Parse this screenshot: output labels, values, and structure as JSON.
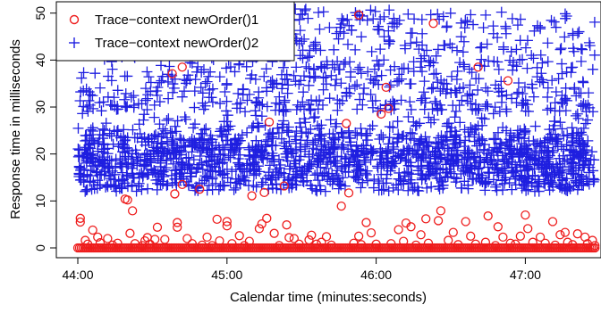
{
  "chart_data": {
    "type": "scatter",
    "xlabel": "Calendar time (minutes:seconds)",
    "ylabel": "Response time in milliseconds",
    "x_ticks": [
      "44:00",
      "45:00",
      "46:00",
      "47:00"
    ],
    "x_tick_seconds": [
      2640,
      2700,
      2760,
      2820
    ],
    "xlim": [
      "44:00",
      "47:30"
    ],
    "y_ticks": [
      0,
      10,
      20,
      30,
      40,
      50
    ],
    "ylim": [
      -1,
      51
    ],
    "legend_position": "top-left",
    "grid": false,
    "series": [
      {
        "name": "Trace−context newOrder()1",
        "marker": "circle",
        "color": "#ee1c1c",
        "points": [
          [
            "44:01",
            6.3
          ],
          [
            "44:01",
            5.5
          ],
          [
            "44:03",
            1.6
          ],
          [
            "44:04",
            0.8
          ],
          [
            "44:06",
            3.8
          ],
          [
            "44:08",
            2.3
          ],
          [
            "44:09",
            1.1
          ],
          [
            "44:12",
            2.0
          ],
          [
            "44:14",
            0.6
          ],
          [
            "44:16",
            1.0
          ],
          [
            "44:19",
            10.4
          ],
          [
            "44:20",
            10.2
          ],
          [
            "44:21",
            3.1
          ],
          [
            "44:22",
            7.9
          ],
          [
            "44:23",
            0.9
          ],
          [
            "44:26",
            0.5
          ],
          [
            "44:27",
            1.5
          ],
          [
            "44:28",
            2.2
          ],
          [
            "44:29",
            0.8
          ],
          [
            "44:31",
            1.8
          ],
          [
            "44:32",
            4.4
          ],
          [
            "44:35",
            1.8
          ],
          [
            "44:38",
            37.1
          ],
          [
            "44:39",
            11.5
          ],
          [
            "44:40",
            5.4
          ],
          [
            "44:40",
            4.4
          ],
          [
            "44:42",
            13.5
          ],
          [
            "44:42",
            38.5
          ],
          [
            "44:44",
            2.0
          ],
          [
            "44:46",
            0.9
          ],
          [
            "44:49",
            12.5
          ],
          [
            "44:50",
            0.6
          ],
          [
            "44:52",
            2.3
          ],
          [
            "44:54",
            0.5
          ],
          [
            "44:56",
            6.1
          ],
          [
            "44:57",
            1.5
          ],
          [
            "45:00",
            4.7
          ],
          [
            "45:00",
            5.6
          ],
          [
            "45:02",
            0.9
          ],
          [
            "45:05",
            2.6
          ],
          [
            "45:07",
            0.5
          ],
          [
            "45:09",
            1.4
          ],
          [
            "45:10",
            11.1
          ],
          [
            "45:13",
            4.1
          ],
          [
            "45:14",
            5.1
          ],
          [
            "45:15",
            11.8
          ],
          [
            "45:16",
            6.3
          ],
          [
            "45:17",
            26.8
          ],
          [
            "45:19",
            3.1
          ],
          [
            "45:21",
            0.5
          ],
          [
            "45:23",
            13.2
          ],
          [
            "45:24",
            4.9
          ],
          [
            "45:25",
            2.2
          ],
          [
            "45:27",
            2.0
          ],
          [
            "45:29",
            0.8
          ],
          [
            "45:33",
            1.7
          ],
          [
            "45:34",
            2.7
          ],
          [
            "45:36",
            0.8
          ],
          [
            "45:38",
            1.2
          ],
          [
            "45:40",
            2.4
          ],
          [
            "45:42",
            0.6
          ],
          [
            "45:46",
            8.9
          ],
          [
            "45:48",
            26.5
          ],
          [
            "45:49",
            11.7
          ],
          [
            "45:51",
            1.0
          ],
          [
            "45:53",
            2.5
          ],
          [
            "45:53",
            49.6
          ],
          [
            "45:54",
            0.7
          ],
          [
            "45:56",
            5.4
          ],
          [
            "45:58",
            3.2
          ],
          [
            "46:00",
            0.8
          ],
          [
            "46:02",
            28.5
          ],
          [
            "46:04",
            34.2
          ],
          [
            "46:05",
            29.7
          ],
          [
            "46:06",
            0.9
          ],
          [
            "46:09",
            3.9
          ],
          [
            "46:11",
            1.4
          ],
          [
            "46:12",
            5.3
          ],
          [
            "46:14",
            4.5
          ],
          [
            "46:16",
            0.6
          ],
          [
            "46:18",
            2.8
          ],
          [
            "46:20",
            6.2
          ],
          [
            "46:21",
            1.0
          ],
          [
            "46:23",
            47.8
          ],
          [
            "46:25",
            5.8
          ],
          [
            "46:26",
            7.9
          ],
          [
            "46:29",
            1.6
          ],
          [
            "46:31",
            3.3
          ],
          [
            "46:33",
            0.7
          ],
          [
            "46:36",
            5.6
          ],
          [
            "46:38",
            2.5
          ],
          [
            "46:40",
            0.8
          ],
          [
            "46:41",
            38.5
          ],
          [
            "46:44",
            1.2
          ],
          [
            "46:45",
            6.8
          ],
          [
            "46:48",
            0.5
          ],
          [
            "46:49",
            4.5
          ],
          [
            "46:51",
            2.3
          ],
          [
            "46:53",
            35.6
          ],
          [
            "46:54",
            1.0
          ],
          [
            "46:56",
            0.8
          ],
          [
            "46:58",
            2.5
          ],
          [
            "47:00",
            7.0
          ],
          [
            "47:01",
            4.1
          ],
          [
            "47:03",
            1.2
          ],
          [
            "47:06",
            2.3
          ],
          [
            "47:08",
            1.0
          ],
          [
            "47:11",
            5.6
          ],
          [
            "47:12",
            0.6
          ],
          [
            "47:14",
            2.8
          ],
          [
            "47:16",
            3.3
          ],
          [
            "47:17",
            1.2
          ],
          [
            "47:19",
            0.7
          ],
          [
            "47:21",
            3.0
          ],
          [
            "47:24",
            2.3
          ],
          [
            "47:25",
            0.9
          ],
          [
            "47:27",
            1.6
          ],
          [
            "47:28",
            0.5
          ]
        ],
        "baseline": {
          "x_start": "44:00",
          "x_end": "47:28",
          "count": 300,
          "y": 0
        }
      },
      {
        "name": "Trace−context newOrder()2",
        "marker": "plus",
        "color": "#1f1fe0",
        "generated": {
          "x_start": "44:00",
          "x_end": "47:28",
          "count": 2400,
          "core_center": 19,
          "core_range": [
            14,
            29
          ],
          "upper_range": [
            29,
            51
          ],
          "upper_fraction": 0.3,
          "min_y": 12
        }
      }
    ]
  }
}
